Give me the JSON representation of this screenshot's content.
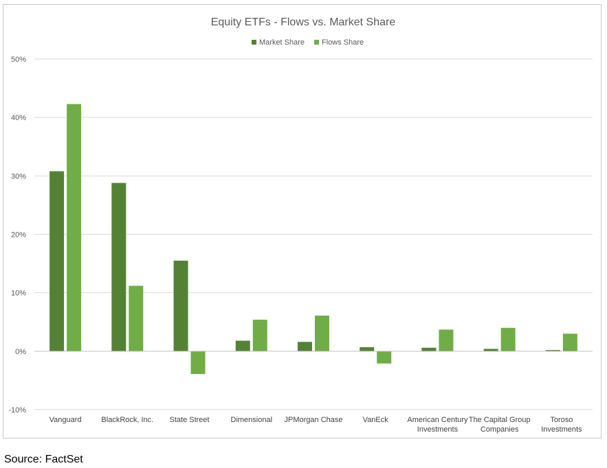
{
  "chart_data": {
    "type": "bar",
    "title": "Equity ETFs - Flows vs. Market Share",
    "xlabel": "",
    "ylabel": "",
    "ylim": [
      -10,
      50
    ],
    "yticks": [
      -10,
      0,
      10,
      20,
      30,
      40,
      50
    ],
    "ytick_labels": [
      "-10%",
      "0%",
      "10%",
      "20%",
      "30%",
      "40%",
      "50%"
    ],
    "grid": true,
    "legend_position": "top-center",
    "categories": [
      [
        "Vanguard"
      ],
      [
        "BlackRock, Inc."
      ],
      [
        "State Street"
      ],
      [
        "Dimensional"
      ],
      [
        "JPMorgan Chase"
      ],
      [
        "VanEck"
      ],
      [
        "American Century",
        "Investments"
      ],
      [
        "The Capital Group",
        "Companies"
      ],
      [
        "Toroso",
        "Investments"
      ]
    ],
    "series": [
      {
        "name": "Market Share",
        "color": "#548235",
        "values": [
          30.8,
          28.8,
          15.5,
          1.8,
          1.6,
          0.7,
          0.6,
          0.4,
          0.2
        ]
      },
      {
        "name": "Flows Share",
        "color": "#70ad47",
        "values": [
          42.3,
          11.2,
          -3.9,
          5.4,
          6.1,
          -2.1,
          3.7,
          4.0,
          3.0
        ]
      }
    ]
  },
  "footer": {
    "source": "Source: FactSet"
  }
}
